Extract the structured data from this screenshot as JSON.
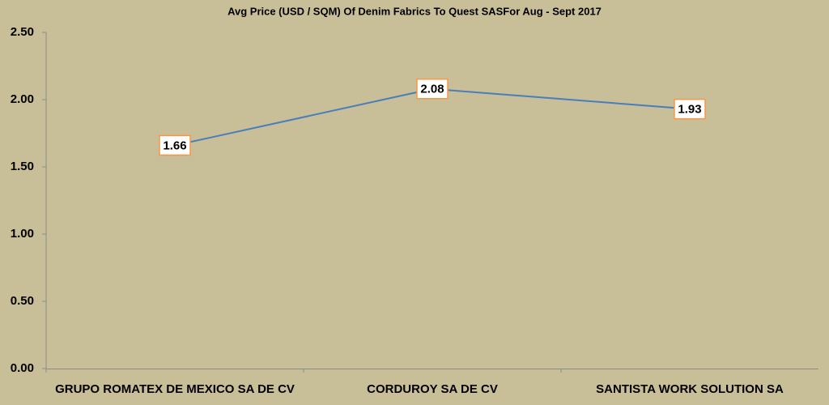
{
  "chart_data": {
    "type": "line",
    "title": "Avg Price (USD / SQM) Of Denim Fabrics To Quest SASFor Aug - Sept 2017",
    "categories": [
      "GRUPO ROMATEX DE MEXICO SA DE CV",
      "CORDUROY SA DE CV",
      "SANTISTA WORK SOLUTION SA"
    ],
    "series": [
      {
        "name": "Avg Price",
        "color": "#4a7ebb",
        "values": [
          1.66,
          2.08,
          1.93
        ]
      }
    ],
    "ylim": [
      0,
      2.5
    ],
    "yticks": [
      {
        "value": 0,
        "label": "0.00"
      },
      {
        "value": 0.5,
        "label": "0.50"
      },
      {
        "value": 1,
        "label": "1.00"
      },
      {
        "value": 1.5,
        "label": "1.50"
      },
      {
        "value": 2,
        "label": "2.00"
      },
      {
        "value": 2.5,
        "label": "2.50"
      }
    ],
    "grid": false,
    "label_border_color": "#f79646"
  }
}
